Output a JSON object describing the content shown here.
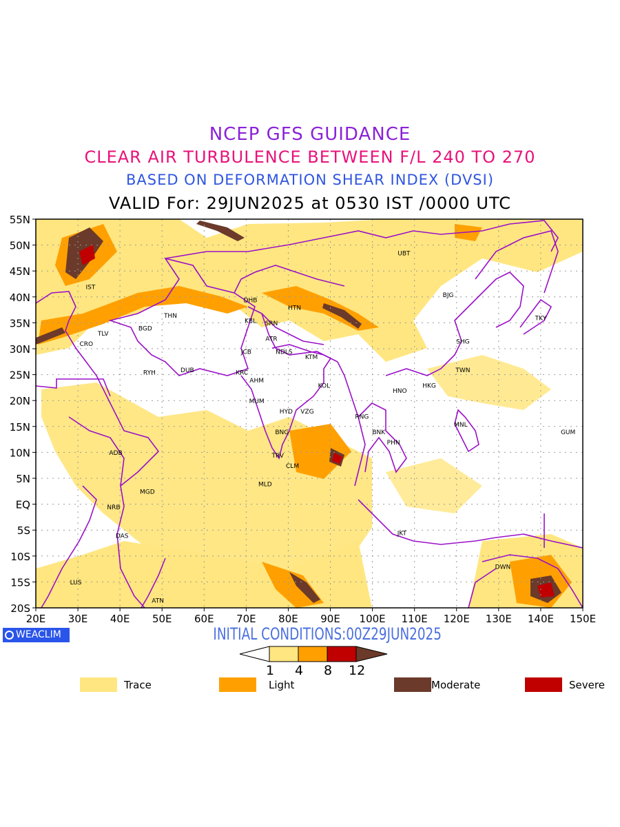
{
  "titles": {
    "line1": "NCEP GFS GUIDANCE",
    "line2": "CLEAR AIR TURBULENCE BETWEEN F/L 240 TO 270",
    "line3": "BASED ON DEFORMATION SHEAR INDEX (DVSI)",
    "line4": "VALID For: 29JUN2025 at 0530 IST /0000 UTC"
  },
  "initial_conditions": "INITIAL CONDITIONS:00Z29JUN2025",
  "logo_text": "WEACLIM",
  "axes": {
    "lat_labels": [
      "55N",
      "50N",
      "45N",
      "40N",
      "35N",
      "30N",
      "25N",
      "20N",
      "15N",
      "10N",
      "5N",
      "EQ",
      "5S",
      "10S",
      "15S",
      "20S"
    ],
    "lon_labels": [
      "20E",
      "30E",
      "40E",
      "50E",
      "60E",
      "70E",
      "80E",
      "90E",
      "100E",
      "110E",
      "120E",
      "130E",
      "140E",
      "150E"
    ],
    "lat_range": [
      -20,
      55
    ],
    "lon_range": [
      20,
      150
    ]
  },
  "colorbar": {
    "ticks": [
      "1",
      "4",
      "8",
      "12"
    ],
    "colors": [
      "#ffe680",
      "#ffa000",
      "#c00000",
      "#6b3a2a"
    ]
  },
  "legend": [
    {
      "label": "Trace",
      "color": "#ffe680"
    },
    {
      "label": "Light",
      "color": "#ffa000"
    },
    {
      "label": "Moderate",
      "color": "#6b3a2a"
    },
    {
      "label": "Severe",
      "color": "#c00000"
    }
  ],
  "colors": {
    "boundary": "#9a10c8",
    "grid": "#999999",
    "trace": "#ffe680",
    "light": "#ffa000",
    "severe": "#c00000",
    "moderate": "#6b3a2a"
  },
  "stations": [
    {
      "code": "IST",
      "lon": 33,
      "lat": 41.5
    },
    {
      "code": "TLV",
      "lon": 36,
      "lat": 32.5
    },
    {
      "code": "CRO",
      "lon": 32,
      "lat": 30.5
    },
    {
      "code": "BGD",
      "lon": 46,
      "lat": 33.5
    },
    {
      "code": "THN",
      "lon": 52,
      "lat": 36
    },
    {
      "code": "RYH",
      "lon": 47,
      "lat": 25
    },
    {
      "code": "DUB",
      "lon": 56,
      "lat": 25.5
    },
    {
      "code": "DHB",
      "lon": 71,
      "lat": 39
    },
    {
      "code": "KBL",
      "lon": 71,
      "lat": 35
    },
    {
      "code": "SRN",
      "lon": 76,
      "lat": 34.5
    },
    {
      "code": "HTN",
      "lon": 81.5,
      "lat": 37.5
    },
    {
      "code": "JCB",
      "lon": 70,
      "lat": 29
    },
    {
      "code": "ATR",
      "lon": 76,
      "lat": 31.5
    },
    {
      "code": "NDLS",
      "lon": 79,
      "lat": 29
    },
    {
      "code": "KTM",
      "lon": 85.5,
      "lat": 28
    },
    {
      "code": "KRC",
      "lon": 69,
      "lat": 25
    },
    {
      "code": "AHM",
      "lon": 72.5,
      "lat": 23.5
    },
    {
      "code": "KOL",
      "lon": 88.5,
      "lat": 22.5
    },
    {
      "code": "MUM",
      "lon": 72.5,
      "lat": 19.5
    },
    {
      "code": "HYD",
      "lon": 79.5,
      "lat": 17.5
    },
    {
      "code": "VZG",
      "lon": 84.5,
      "lat": 17.5
    },
    {
      "code": "BNG",
      "lon": 78.5,
      "lat": 13.5
    },
    {
      "code": "TRV",
      "lon": 77.5,
      "lat": 9
    },
    {
      "code": "CLM",
      "lon": 81,
      "lat": 7
    },
    {
      "code": "MLD",
      "lon": 74.5,
      "lat": 3.5
    },
    {
      "code": "RNG",
      "lon": 97.5,
      "lat": 16.5
    },
    {
      "code": "BNK",
      "lon": 101.5,
      "lat": 13.5
    },
    {
      "code": "PHN",
      "lon": 105,
      "lat": 11.5
    },
    {
      "code": "HNO",
      "lon": 106.5,
      "lat": 21.5
    },
    {
      "code": "HKG",
      "lon": 113.5,
      "lat": 22.5
    },
    {
      "code": "TWN",
      "lon": 121.5,
      "lat": 25.5
    },
    {
      "code": "SHG",
      "lon": 121.5,
      "lat": 31
    },
    {
      "code": "BJG",
      "lon": 118,
      "lat": 40
    },
    {
      "code": "UBT",
      "lon": 107.5,
      "lat": 48
    },
    {
      "code": "TKY",
      "lon": 140,
      "lat": 35.5
    },
    {
      "code": "MNL",
      "lon": 121,
      "lat": 15
    },
    {
      "code": "GUM",
      "lon": 146.5,
      "lat": 13.5
    },
    {
      "code": "ADB",
      "lon": 39,
      "lat": 9.5
    },
    {
      "code": "MGD",
      "lon": 46.5,
      "lat": 2
    },
    {
      "code": "NRB",
      "lon": 38.5,
      "lat": -1
    },
    {
      "code": "DAS",
      "lon": 40.5,
      "lat": -6.5
    },
    {
      "code": "LUS",
      "lon": 29.5,
      "lat": -15.5
    },
    {
      "code": "ATN",
      "lon": 49,
      "lat": -19
    },
    {
      "code": "DWN",
      "lon": 131,
      "lat": -12.5
    },
    {
      "code": "JKT",
      "lon": 107,
      "lat": -6
    }
  ]
}
